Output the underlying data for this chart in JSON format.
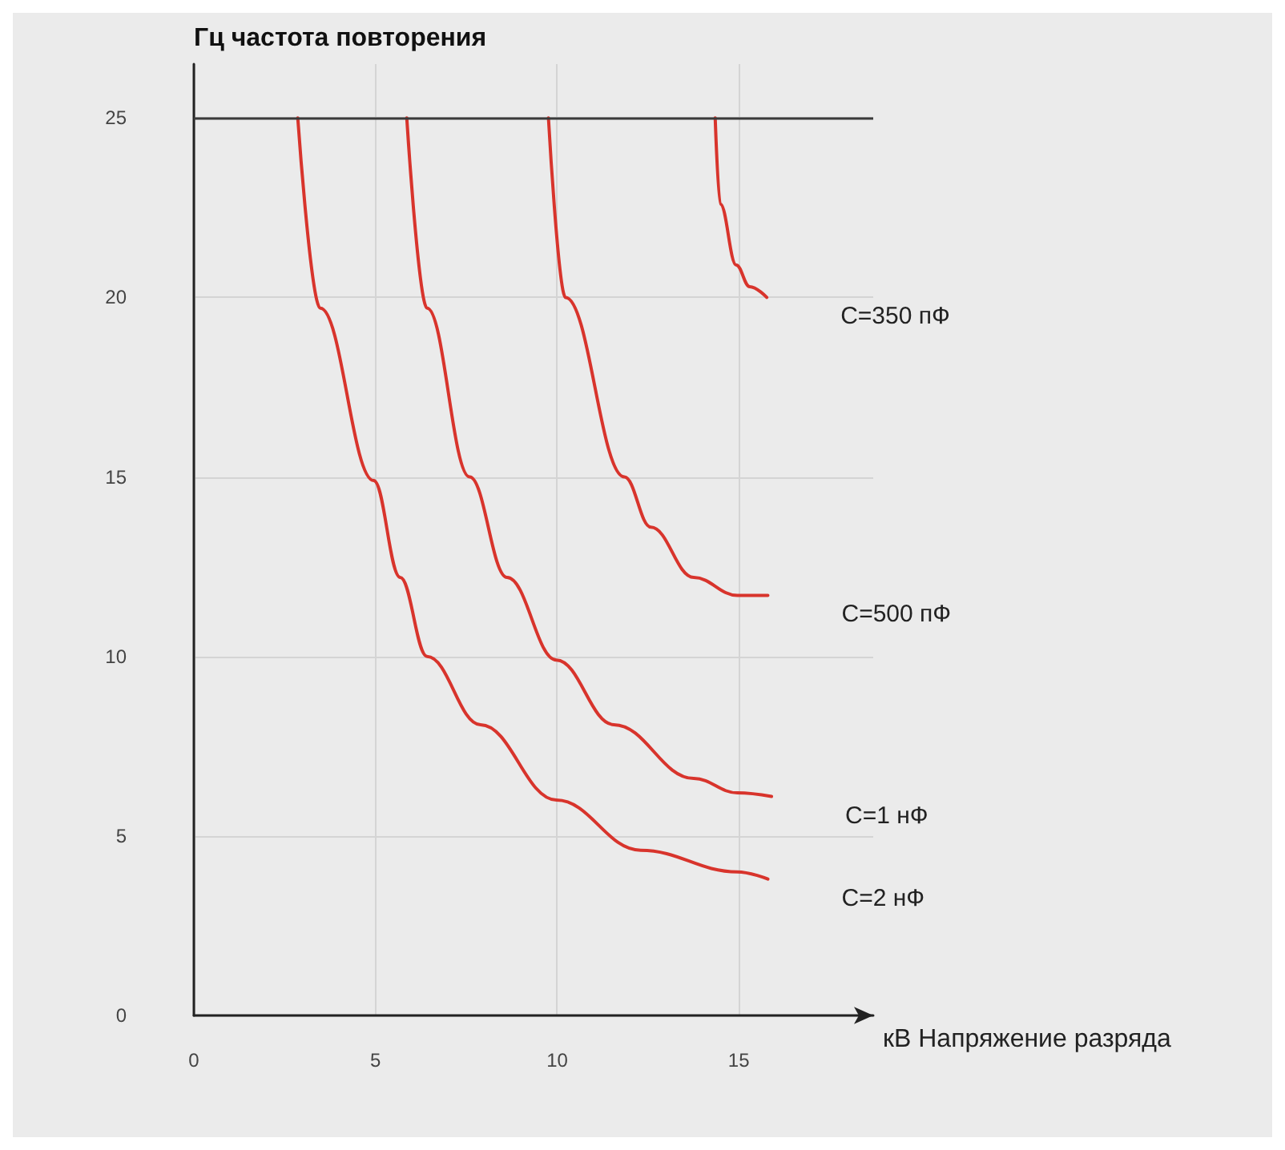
{
  "chart_data": {
    "type": "line",
    "xlabel": "кВ Напряжение разряда",
    "ylabel": "Гц частота повторения",
    "xlim": [
      0,
      18.7
    ],
    "xticks": [
      0,
      5,
      10,
      15
    ],
    "ylim": [
      0,
      26.5
    ],
    "yticks": [
      0,
      5,
      10,
      15,
      20,
      25
    ],
    "grid": true,
    "legend": false,
    "marker": "none",
    "line_style": "solid",
    "ref_lines": [
      {
        "axis": "y",
        "value": 25,
        "color": "#3a3a3a"
      }
    ],
    "series": [
      {
        "name": "C=350 пФ",
        "color": "#d8342c",
        "x": [
          14.35,
          14.49,
          14.93,
          15.3,
          15.77
        ],
        "values": [
          25,
          22.6,
          20.9,
          20.3,
          20.0
        ]
      },
      {
        "name": "C=500 пФ",
        "color": "#d8342c",
        "x": [
          9.76,
          10.23,
          11.85,
          12.58,
          13.76,
          14.96,
          15.8
        ],
        "values": [
          25,
          20.0,
          15.0,
          13.6,
          12.2,
          11.7,
          11.7
        ]
      },
      {
        "name": "C=1 нФ",
        "color": "#d8342c",
        "x": [
          5.86,
          6.42,
          7.59,
          8.62,
          9.98,
          11.56,
          13.76,
          14.96,
          15.9
        ],
        "values": [
          25,
          19.7,
          15.0,
          12.2,
          9.9,
          8.1,
          6.6,
          6.2,
          6.1
        ]
      },
      {
        "name": "C=2 нФ",
        "color": "#d8342c",
        "x": [
          2.86,
          3.48,
          4.95,
          5.68,
          6.42,
          7.89,
          9.98,
          12.3,
          14.96,
          15.8
        ],
        "values": [
          25,
          19.7,
          14.9,
          12.2,
          10.0,
          8.1,
          6.0,
          4.6,
          4.0,
          3.8
        ]
      }
    ]
  }
}
